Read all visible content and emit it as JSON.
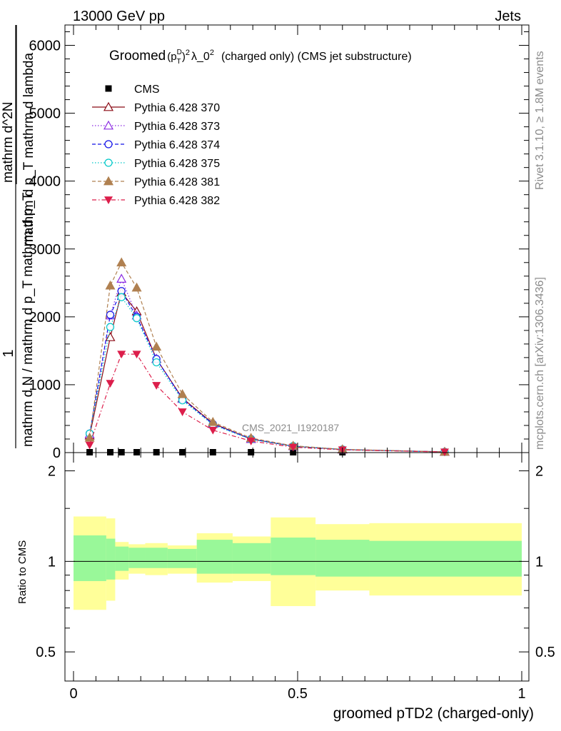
{
  "header": {
    "left": "13000 GeV pp",
    "right": "Jets"
  },
  "side_labels": {
    "rivet": "Rivet 3.1.10, ≥ 1.8M events",
    "mcplots": "mcplots.cern.ch [arXiv:1306.3436]"
  },
  "watermark": "CMS_2021_I1920187",
  "chart_data": [
    {
      "type": "line",
      "title": "Groomed (p_T^D)^2 λ_0^2  (charged only) (CMS jet substructure)",
      "title_parts": {
        "lead": "Groomed",
        "sup_d": "D",
        "sub_t": "T",
        "sup_2": "2",
        "lam": "λ_0",
        "lam_sup": "2",
        "rest": "(charged only) (CMS jet substructure)"
      },
      "ylabel_parts": {
        "one": "1",
        "denominator": "mathrm d N / mathrm d p_T mathrm d p_T",
        "numerator_top": "mathrm d^2N",
        "numerator_bottom": "mathrm d p_T mathrm d lambda"
      },
      "xlim": [
        0,
        1
      ],
      "ylim": [
        0,
        6300
      ],
      "y_ticks": [
        0,
        1000,
        2000,
        3000,
        4000,
        5000,
        6000
      ],
      "y_tick_labels": [
        "0",
        "1000",
        "2000",
        "3000",
        "4000",
        "5000",
        "6000"
      ],
      "legend_position": "top-left",
      "series": [
        {
          "name": "CMS",
          "color": "#000000",
          "marker": "square",
          "dash": "",
          "x": [
            0.036,
            0.082,
            0.107,
            0.141,
            0.185,
            0.243,
            0.311,
            0.396,
            0.49,
            0.6,
            0.828
          ],
          "y": [
            0,
            0,
            0,
            0,
            0,
            0,
            0,
            0,
            0,
            0,
            0
          ]
        },
        {
          "name": "Pythia 6.428 370",
          "color": "#8b0a14",
          "marker": "triangle-open",
          "dash": "",
          "x": [
            0.036,
            0.082,
            0.107,
            0.141,
            0.185,
            0.243,
            0.311,
            0.396,
            0.49,
            0.6,
            0.828
          ],
          "y": [
            250,
            1700,
            2360,
            2080,
            1380,
            800,
            430,
            200,
            95,
            45,
            10
          ]
        },
        {
          "name": "Pythia 6.428 373",
          "color": "#8b2be2",
          "marker": "triangle-open",
          "dash": "1.5,2.5",
          "x": [
            0.036,
            0.082,
            0.107,
            0.141,
            0.185,
            0.243,
            0.311,
            0.396,
            0.49,
            0.6,
            0.828
          ],
          "y": [
            270,
            2020,
            2560,
            2020,
            1380,
            790,
            420,
            200,
            95,
            45,
            10
          ]
        },
        {
          "name": "Pythia 6.428 374",
          "color": "#1010e8",
          "marker": "circle-open",
          "dash": "5,3",
          "x": [
            0.036,
            0.082,
            0.107,
            0.141,
            0.185,
            0.243,
            0.311,
            0.396,
            0.49,
            0.6,
            0.828
          ],
          "y": [
            280,
            2030,
            2380,
            2000,
            1380,
            790,
            420,
            200,
            95,
            45,
            10
          ]
        },
        {
          "name": "Pythia 6.428 375",
          "color": "#00c8c8",
          "marker": "circle-open",
          "dash": "1.5,2.5",
          "x": [
            0.036,
            0.082,
            0.107,
            0.141,
            0.185,
            0.243,
            0.311,
            0.396,
            0.49,
            0.6,
            0.828
          ],
          "y": [
            280,
            1850,
            2290,
            1980,
            1330,
            770,
            410,
            195,
            95,
            45,
            10
          ]
        },
        {
          "name": "Pythia 6.428 381",
          "color": "#b08050",
          "marker": "triangle-filled",
          "dash": "5,3",
          "x": [
            0.036,
            0.082,
            0.107,
            0.141,
            0.185,
            0.243,
            0.311,
            0.396,
            0.49,
            0.6,
            0.828
          ],
          "y": [
            220,
            2460,
            2800,
            2430,
            1560,
            860,
            450,
            215,
            100,
            48,
            11
          ]
        },
        {
          "name": "Pythia 6.428 382",
          "color": "#dc1e4b",
          "marker": "triangle-down-filled",
          "dash": "6,3,1.5,3",
          "x": [
            0.036,
            0.082,
            0.107,
            0.141,
            0.185,
            0.243,
            0.311,
            0.396,
            0.49,
            0.6,
            0.828
          ],
          "y": [
            110,
            1020,
            1450,
            1450,
            990,
            600,
            330,
            170,
            80,
            40,
            9
          ]
        }
      ]
    },
    {
      "type": "area",
      "ylabel": "Ratio to CMS",
      "xlabel": "groomed pTD2 (charged-only)",
      "xlim": [
        0,
        1
      ],
      "ylim": [
        0.4,
        2.3
      ],
      "y_scale": "log",
      "y_ticks": [
        0.5,
        1,
        2
      ],
      "y_tick_labels": [
        "0.5",
        "1",
        "2"
      ],
      "x_ticks": [
        0,
        0.5,
        1
      ],
      "x_tick_labels": [
        "0",
        "0.5",
        "1"
      ],
      "reference_line": 1,
      "bands": {
        "bin_edges": [
          0,
          0.073,
          0.093,
          0.123,
          0.16,
          0.21,
          0.275,
          0.355,
          0.44,
          0.54,
          0.66,
          1.0
        ],
        "inner_color": "#99f899",
        "outer_color": "#ffff99",
        "inner_upper": [
          1.22,
          1.19,
          1.12,
          1.11,
          1.11,
          1.1,
          1.18,
          1.15,
          1.2,
          1.18,
          1.17
        ],
        "inner_lower": [
          0.86,
          0.87,
          0.93,
          0.95,
          0.95,
          0.95,
          0.91,
          0.91,
          0.9,
          0.89,
          0.89
        ],
        "outer_upper": [
          1.41,
          1.39,
          1.16,
          1.14,
          1.15,
          1.13,
          1.24,
          1.21,
          1.4,
          1.33,
          1.34
        ],
        "outer_lower": [
          0.69,
          0.74,
          0.87,
          0.91,
          0.9,
          0.91,
          0.85,
          0.86,
          0.71,
          0.8,
          0.77
        ]
      }
    }
  ]
}
